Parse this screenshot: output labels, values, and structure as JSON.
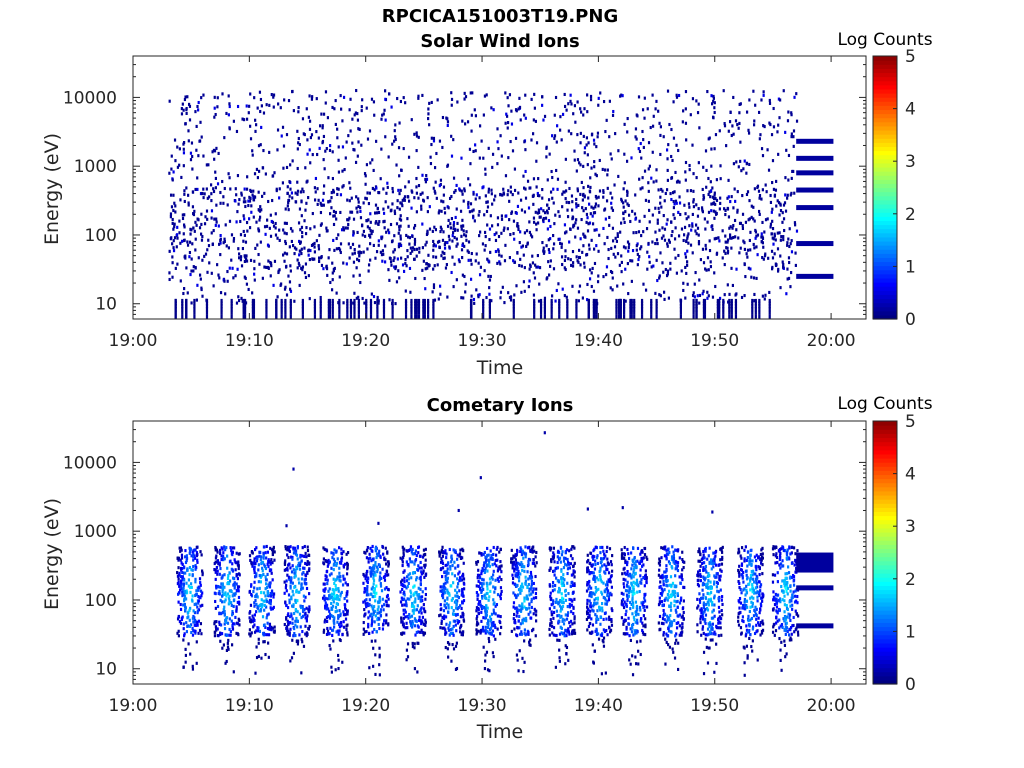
{
  "figure": {
    "title": "RPCICA151003T19.PNG"
  },
  "colors": {
    "background": "#ffffff",
    "axes": "#262626",
    "colormap": "jet"
  },
  "chart_data": [
    {
      "type": "heatmap",
      "title": "Solar Wind Ions",
      "xlabel": "Time",
      "ylabel": "Energy (eV)",
      "y_scale": "log",
      "x_ticks": [
        "19:00",
        "19:10",
        "19:20",
        "19:30",
        "19:40",
        "19:50",
        "20:00"
      ],
      "y_ticks": [
        "10",
        "100",
        "1000",
        "10000"
      ],
      "x_range": [
        "19:00",
        "20:03"
      ],
      "y_range": [
        6,
        40000
      ],
      "colorbar": {
        "label": "Log Counts",
        "range": [
          0,
          5
        ],
        "ticks": [
          "0",
          "1",
          "2",
          "3",
          "4",
          "5"
        ]
      },
      "data_start": "19:03",
      "data_end": "19:57",
      "description_level": "scattered low counts (Log ~0-0.5) across 10-20000 eV; denser clusters at ~30-400 eV",
      "fixed_bands_after_19:57_eV": [
        2300,
        1300,
        800,
        450,
        250,
        75,
        25
      ]
    },
    {
      "type": "heatmap",
      "title": "Cometary Ions",
      "xlabel": "Time",
      "ylabel": "Energy (eV)",
      "y_scale": "log",
      "x_ticks": [
        "19:00",
        "19:10",
        "19:20",
        "19:30",
        "19:40",
        "19:50",
        "20:00"
      ],
      "y_ticks": [
        "10",
        "100",
        "1000",
        "10000"
      ],
      "x_range": [
        "19:00",
        "20:03"
      ],
      "y_range": [
        6,
        40000
      ],
      "colorbar": {
        "label": "Log Counts",
        "range": [
          0,
          5
        ],
        "ticks": [
          "0",
          "1",
          "2",
          "3",
          "4",
          "5"
        ]
      },
      "bursts_time": [
        "19:04.8",
        "19:08",
        "19:11",
        "19:14",
        "19:17.3",
        "19:20.8",
        "19:24",
        "19:27.3",
        "19:30.5",
        "19:33.5",
        "19:36.8",
        "19:40",
        "19:43",
        "19:46.2",
        "19:49.5",
        "19:53",
        "19:56"
      ],
      "burst_energy_range_eV": [
        30,
        600
      ],
      "burst_peak_log_counts": 1.8,
      "fixed_bands_after_19:57_eV": [
        350,
        150,
        42
      ]
    }
  ]
}
